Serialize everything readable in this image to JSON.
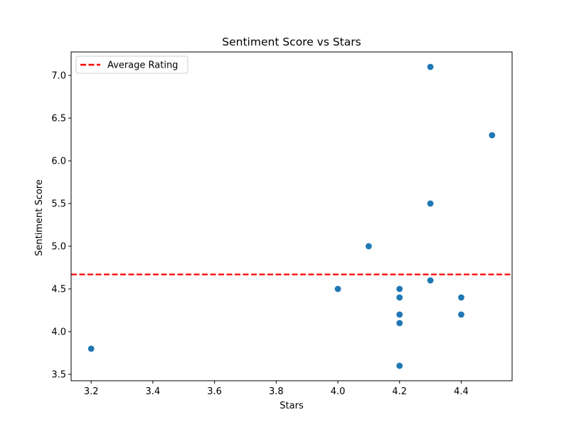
{
  "chart_data": {
    "type": "scatter",
    "title": "Sentiment Score vs Stars",
    "xlabel": "Stars",
    "ylabel": "Sentiment Score",
    "xlim": [
      3.135,
      4.565
    ],
    "ylim": [
      3.425,
      7.275
    ],
    "xticks": [
      3.2,
      3.4,
      3.6,
      3.8,
      4.0,
      4.2,
      4.4
    ],
    "xtick_labels": [
      "3.2",
      "3.4",
      "3.6",
      "3.8",
      "4.0",
      "4.2",
      "4.4"
    ],
    "yticks": [
      3.5,
      4.0,
      4.5,
      5.0,
      5.5,
      6.0,
      6.5,
      7.0
    ],
    "ytick_labels": [
      "3.5",
      "4.0",
      "4.5",
      "5.0",
      "5.5",
      "6.0",
      "6.5",
      "7.0"
    ],
    "grid": false,
    "legend_position": "top-left",
    "series": [
      {
        "type": "scatter",
        "color": "#1f77b4",
        "points": [
          {
            "x": 3.2,
            "y": 3.8
          },
          {
            "x": 4.0,
            "y": 4.5
          },
          {
            "x": 4.1,
            "y": 5.0
          },
          {
            "x": 4.2,
            "y": 4.5
          },
          {
            "x": 4.2,
            "y": 4.4
          },
          {
            "x": 4.2,
            "y": 4.2
          },
          {
            "x": 4.2,
            "y": 4.1
          },
          {
            "x": 4.2,
            "y": 3.6
          },
          {
            "x": 4.3,
            "y": 7.1
          },
          {
            "x": 4.3,
            "y": 5.5
          },
          {
            "x": 4.3,
            "y": 4.6
          },
          {
            "x": 4.4,
            "y": 4.4
          },
          {
            "x": 4.4,
            "y": 4.2
          },
          {
            "x": 4.5,
            "y": 6.3
          }
        ]
      }
    ],
    "reference_lines": [
      {
        "name": "Average Rating",
        "orientation": "horizontal",
        "y": 4.67,
        "color": "#ff0000",
        "style": "dashed"
      }
    ]
  }
}
